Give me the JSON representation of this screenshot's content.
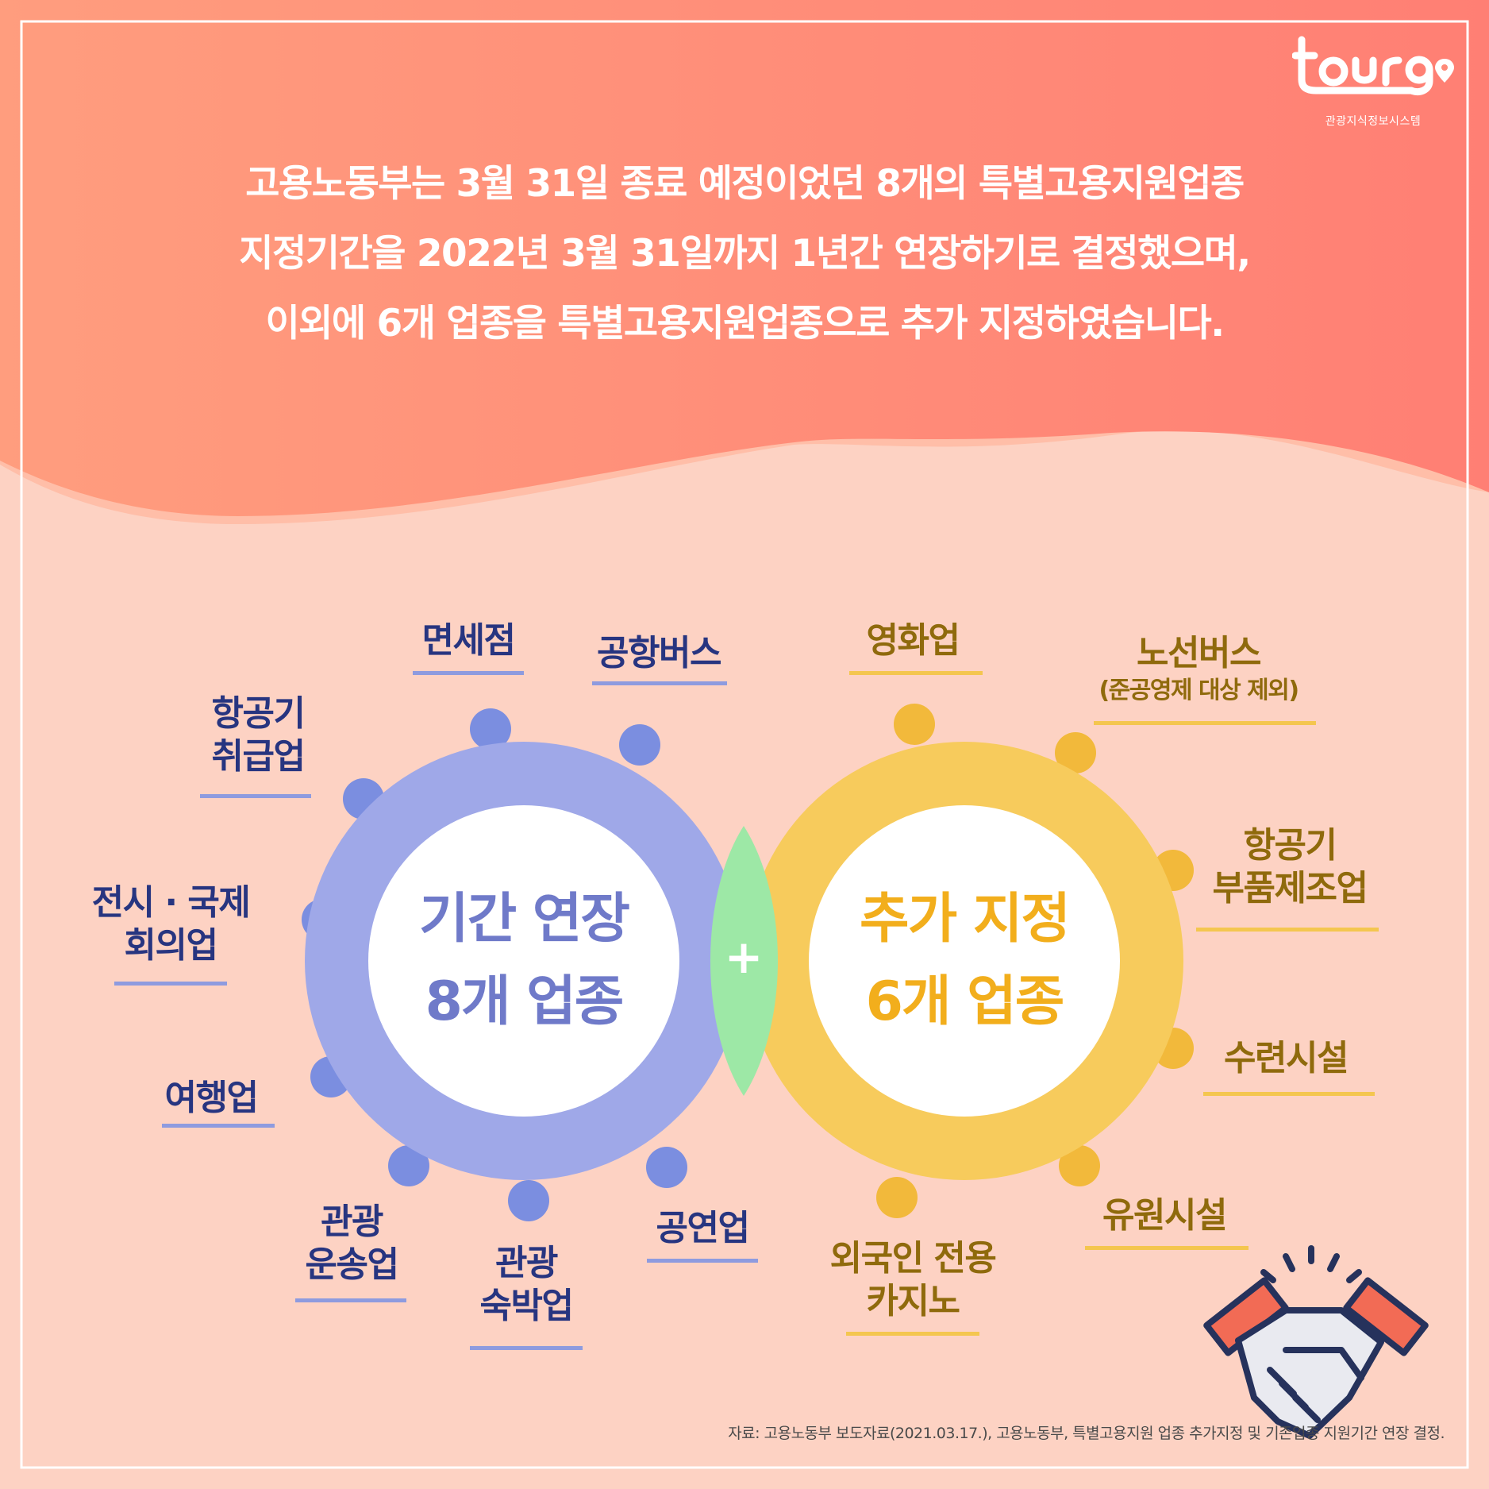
{
  "brand": {
    "logo_text": "tour9",
    "subtitle": "관광지식정보시스템"
  },
  "headline": [
    "고용노동부는 3월 31일 종료 예정이었던 8개의 특별고용지원업종",
    "지정기간을 2022년 3월 31일까지 1년간 연장하기로 결정했으며,",
    "이외에 6개 업종을 특별고용지원업종으로 추가 지정하였습니다."
  ],
  "diagram": {
    "left_circle": {
      "line1": "기간 연장",
      "line2": "8개 업종",
      "color": "#9fa8e8"
    },
    "right_circle": {
      "line1": "추가 지정",
      "line2": "6개 업종",
      "color": "#f7cb5c"
    },
    "plus": "+",
    "overlap_color": "#9de8a6",
    "extended": {
      "duty_free": "면세점",
      "airport_bus": "공항버스",
      "aircraft_handling": [
        "항공기",
        "취급업"
      ],
      "exhibition": [
        "전시 · 국제",
        "회의업"
      ],
      "travel": "여행업",
      "tour_transport": [
        "관광",
        "운송업"
      ],
      "tour_lodging": [
        "관광",
        "숙박업"
      ],
      "performance": "공연업"
    },
    "added": {
      "film": "영화업",
      "route_bus": "노선버스",
      "route_bus_note": "(준공영제 대상 제외)",
      "aircraft_parts": [
        "항공기",
        "부품제조업"
      ],
      "training": "수련시설",
      "amusement": "유원시설",
      "casino": [
        "외국인 전용",
        "카지노"
      ]
    }
  },
  "source": "자료: 고용노동부 보도자료(2021.03.17.), 고용노동부, 특별고용지원 업종 추가지정 및 기존업종 지원기간 연장 결정.",
  "colors": {
    "top_wave": "#ff8f7a",
    "background": "#fdd2c3",
    "blue_text": "#273580",
    "gold_text": "#8f6a0c",
    "blue_dots": "#7b8ee0",
    "gold_dots": "#f2b93b"
  }
}
